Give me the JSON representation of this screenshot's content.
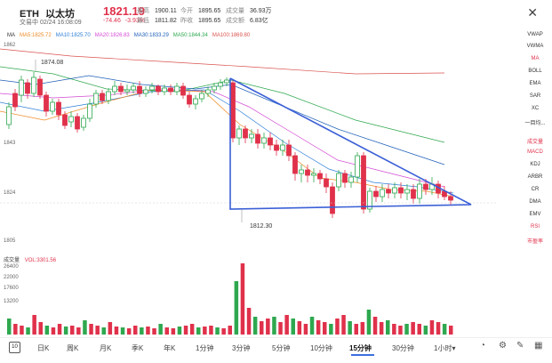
{
  "header": {
    "symbol": "ETH",
    "name": "以太坊",
    "status": "交易中",
    "datetime": "02/24 16:08:09",
    "price": "1821.19",
    "change": "-74.46",
    "change_pct": "-3.93%",
    "stats": [
      {
        "label": "最高",
        "value": "1900.11"
      },
      {
        "label": "今开",
        "value": "1895.65"
      },
      {
        "label": "成交量",
        "value": "36.93万"
      },
      {
        "label": "最低",
        "value": "1811.82"
      },
      {
        "label": "昨收",
        "value": "1895.65"
      },
      {
        "label": "成交额",
        "value": "6.83亿"
      }
    ],
    "close_icon": "close-icon"
  },
  "ma_legend": [
    {
      "label": "MA",
      "color": "#333333"
    },
    {
      "label": "MA5:1825.72",
      "color": "#f08a24"
    },
    {
      "label": "MA10:1825.70",
      "color": "#2f7fd6"
    },
    {
      "label": "MA20:1826.83",
      "color": "#d44ad4"
    },
    {
      "label": "MA30:1833.29",
      "color": "#1f5fb8"
    },
    {
      "label": "MA50:1844.34",
      "color": "#2ea84f"
    },
    {
      "label": "MA100:1869.80",
      "color": "#d9534f"
    }
  ],
  "y_axis": [
    "1862",
    "1843",
    "1824",
    "1805"
  ],
  "annotations": {
    "high": "1874.08",
    "low": "1812.30"
  },
  "volume": {
    "label": "成交量",
    "vol": "VOL:3301.56",
    "y_axis": [
      "26400",
      "22000",
      "17600",
      "13200"
    ]
  },
  "side_menu": [
    {
      "label": "VWAP",
      "active": false
    },
    {
      "label": "VWMA",
      "active": false
    },
    {
      "label": "MA",
      "active": true
    },
    {
      "label": "BOLL",
      "active": false
    },
    {
      "label": "EMA",
      "active": false
    },
    {
      "label": "SAR",
      "active": false
    },
    {
      "label": "XC",
      "active": false
    },
    {
      "label": "一目均...",
      "active": false
    },
    {
      "label": "成交量",
      "active": true
    },
    {
      "label": "MACD",
      "active": true
    },
    {
      "label": "KDJ",
      "active": false
    },
    {
      "label": "ARBR",
      "active": false
    },
    {
      "label": "CR",
      "active": false
    },
    {
      "label": "DMA",
      "active": false
    },
    {
      "label": "EMV",
      "active": false
    },
    {
      "label": "RSI",
      "active": true
    },
    {
      "label": "市盈率",
      "active": true
    }
  ],
  "toolbar": {
    "tabs": [
      "日K",
      "周K",
      "月K",
      "季K",
      "年K",
      "1分钟",
      "3分钟",
      "5分钟",
      "10分钟",
      "15分钟",
      "30分钟",
      "1小时▾"
    ],
    "active": "15分钟",
    "icons": [
      "gauge-icon",
      "settings-icon",
      "pen-icon",
      "grid-icon"
    ]
  },
  "colors": {
    "up": "#2ea84f",
    "down": "#e0314b",
    "triangle": "#3b5fd6"
  }
}
